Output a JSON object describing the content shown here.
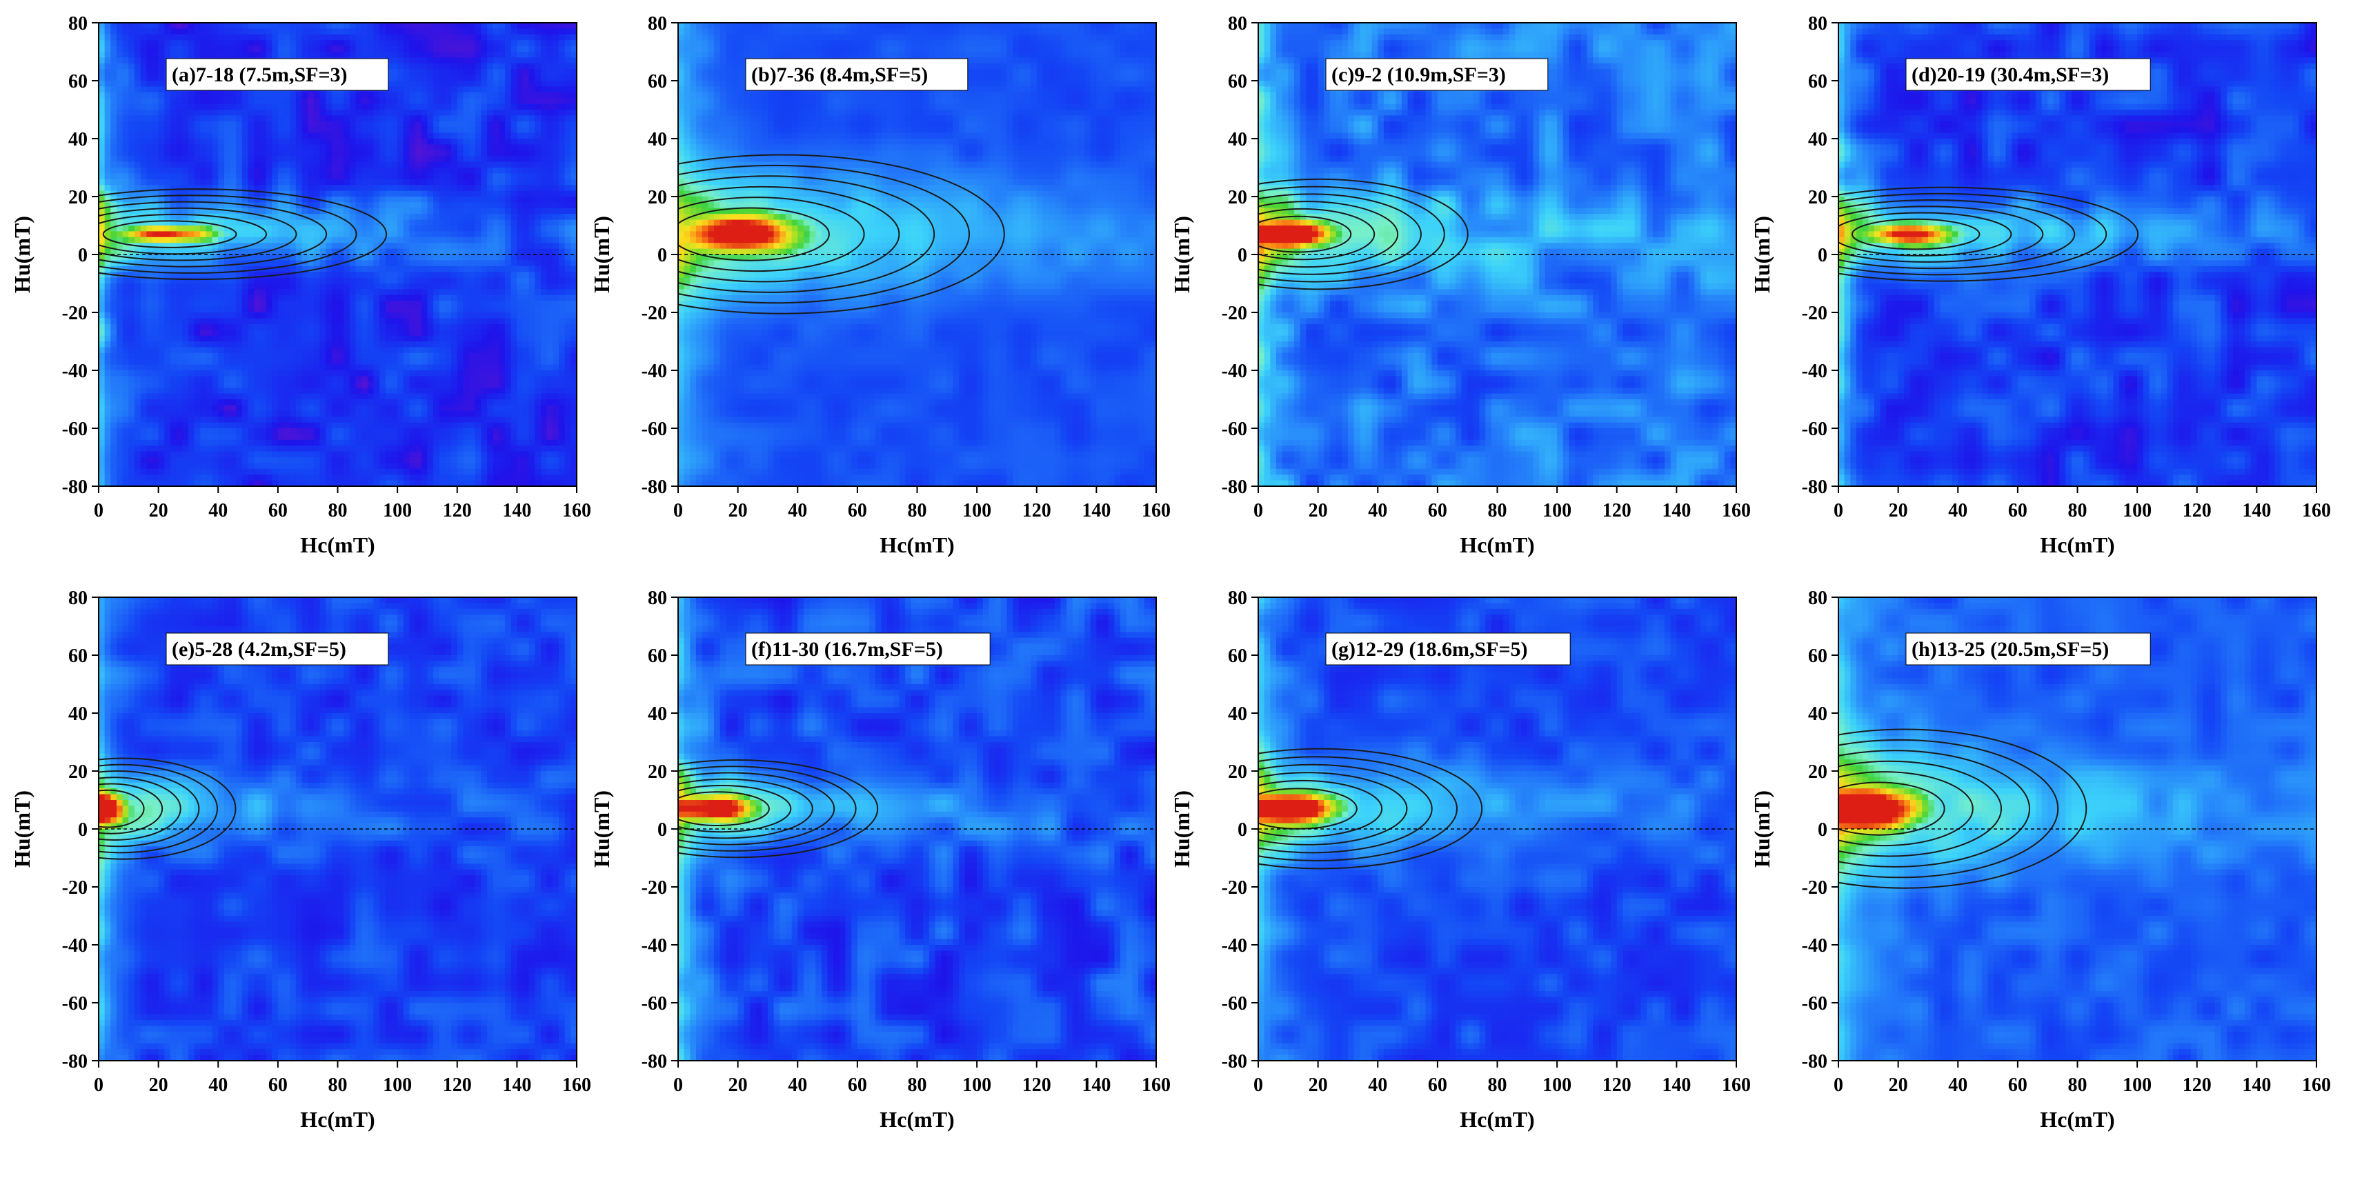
{
  "chart_data": [
    {
      "type": "heatmap",
      "label": "(a)7-18 (7.5m,SF=3)",
      "xlabel": "Hc(mT)",
      "ylabel": "Hu(mT)",
      "xlim": [
        0,
        160
      ],
      "ylim": [
        -80,
        80
      ],
      "xticks": [
        0,
        20,
        40,
        60,
        80,
        100,
        120,
        140,
        160
      ],
      "yticks": [
        -80,
        -60,
        -40,
        -20,
        0,
        20,
        40,
        60,
        80
      ],
      "peak": {
        "hc": 22,
        "hu": 7
      },
      "peak_x_extent": 20,
      "peak_y_extent": 4,
      "ridge_y_extent": 12,
      "ridge_x_length": 90,
      "spine_x_extent": 4,
      "spine_strength": 0.75,
      "background": 0.06,
      "noise": 0.1,
      "seed": 11
    },
    {
      "type": "heatmap",
      "label": "(b)7-36 (8.4m,SF=5)",
      "xlabel": "Hc(mT)",
      "ylabel": "Hu(mT)",
      "xlim": [
        0,
        160
      ],
      "ylim": [
        -80,
        80
      ],
      "xticks": [
        0,
        20,
        40,
        60,
        80,
        100,
        120,
        140,
        160
      ],
      "yticks": [
        -80,
        -60,
        -40,
        -20,
        0,
        20,
        40,
        60,
        80
      ],
      "peak": {
        "hc": 22,
        "hu": 7
      },
      "peak_x_extent": 24,
      "peak_y_extent": 9,
      "ridge_y_extent": 20,
      "ridge_x_length": 105,
      "spine_x_extent": 10,
      "spine_strength": 0.45,
      "background": 0.15,
      "noise": 0.04,
      "seed": 23
    },
    {
      "type": "heatmap",
      "label": "(c)9-2 (10.9m,SF=3)",
      "xlabel": "Hc(mT)",
      "ylabel": "Hu(mT)",
      "xlim": [
        0,
        160
      ],
      "ylim": [
        -80,
        80
      ],
      "xticks": [
        0,
        20,
        40,
        60,
        80,
        100,
        120,
        140,
        160
      ],
      "yticks": [
        -80,
        -60,
        -40,
        -20,
        0,
        20,
        40,
        60,
        80
      ],
      "peak": {
        "hc": 12,
        "hu": 7
      },
      "peak_x_extent": 16,
      "peak_y_extent": 6,
      "ridge_y_extent": 14,
      "ridge_x_length": 70,
      "spine_x_extent": 6,
      "spine_strength": 0.5,
      "background": 0.17,
      "noise": 0.11,
      "seed": 37
    },
    {
      "type": "heatmap",
      "label": "(d)20-19 (30.4m,SF=3)",
      "xlabel": "Hc(mT)",
      "ylabel": "Hu(mT)",
      "xlim": [
        0,
        160
      ],
      "ylim": [
        -80,
        80
      ],
      "xticks": [
        0,
        20,
        40,
        60,
        80,
        100,
        120,
        140,
        160
      ],
      "yticks": [
        -80,
        -60,
        -40,
        -20,
        0,
        20,
        40,
        60,
        80
      ],
      "peak": {
        "hc": 24,
        "hu": 7
      },
      "peak_x_extent": 18,
      "peak_y_extent": 5,
      "ridge_y_extent": 12,
      "ridge_x_length": 95,
      "spine_x_extent": 5,
      "spine_strength": 0.6,
      "background": 0.08,
      "noise": 0.1,
      "seed": 41
    },
    {
      "type": "heatmap",
      "label": "(e)5-28 (4.2m,SF=5)",
      "xlabel": "Hc(mT)",
      "ylabel": "Hu(mT)",
      "xlim": [
        0,
        160
      ],
      "ylim": [
        -80,
        80
      ],
      "xticks": [
        0,
        20,
        40,
        60,
        80,
        100,
        120,
        140,
        160
      ],
      "yticks": [
        -80,
        -60,
        -40,
        -20,
        0,
        20,
        40,
        60,
        80
      ],
      "peak": {
        "hc": 2,
        "hu": 7
      },
      "peak_x_extent": 10,
      "peak_y_extent": 7,
      "ridge_y_extent": 12,
      "ridge_x_length": 55,
      "spine_x_extent": 5,
      "spine_strength": 0.6,
      "background": 0.1,
      "noise": 0.08,
      "seed": 53
    },
    {
      "type": "heatmap",
      "label": "(f)11-30 (16.7m,SF=5)",
      "xlabel": "Hc(mT)",
      "ylabel": "Hu(mT)",
      "xlim": [
        0,
        160
      ],
      "ylim": [
        -80,
        80
      ],
      "xticks": [
        0,
        20,
        40,
        60,
        80,
        100,
        120,
        140,
        160
      ],
      "yticks": [
        -80,
        -60,
        -40,
        -20,
        0,
        20,
        40,
        60,
        80
      ],
      "peak": {
        "hc": 12,
        "hu": 7
      },
      "peak_x_extent": 16,
      "peak_y_extent": 6,
      "ridge_y_extent": 12,
      "ridge_x_length": 65,
      "spine_x_extent": 6,
      "spine_strength": 0.55,
      "background": 0.1,
      "noise": 0.1,
      "seed": 67
    },
    {
      "type": "heatmap",
      "label": "(g)12-29 (18.6m,SF=5)",
      "xlabel": "Hc(mT)",
      "ylabel": "Hu(mT)",
      "xlim": [
        0,
        160
      ],
      "ylim": [
        -80,
        80
      ],
      "xticks": [
        0,
        20,
        40,
        60,
        80,
        100,
        120,
        140,
        160
      ],
      "yticks": [
        -80,
        -60,
        -40,
        -20,
        0,
        20,
        40,
        60,
        80
      ],
      "peak": {
        "hc": 12,
        "hu": 7
      },
      "peak_x_extent": 18,
      "peak_y_extent": 7,
      "ridge_y_extent": 15,
      "ridge_x_length": 75,
      "spine_x_extent": 7,
      "spine_strength": 0.5,
      "background": 0.12,
      "noise": 0.07,
      "seed": 79
    },
    {
      "type": "heatmap",
      "label": "(h)13-25 (20.5m,SF=5)",
      "xlabel": "Hc(mT)",
      "ylabel": "Hu(mT)",
      "xlim": [
        0,
        160
      ],
      "ylim": [
        -80,
        80
      ],
      "xticks": [
        0,
        20,
        40,
        60,
        80,
        100,
        120,
        140,
        160
      ],
      "yticks": [
        -80,
        -60,
        -40,
        -20,
        0,
        20,
        40,
        60,
        80
      ],
      "peak": {
        "hc": 12,
        "hu": 7
      },
      "peak_x_extent": 20,
      "peak_y_extent": 9,
      "ridge_y_extent": 20,
      "ridge_x_length": 85,
      "spine_x_extent": 10,
      "spine_strength": 0.5,
      "background": 0.16,
      "noise": 0.06,
      "seed": 97
    }
  ]
}
